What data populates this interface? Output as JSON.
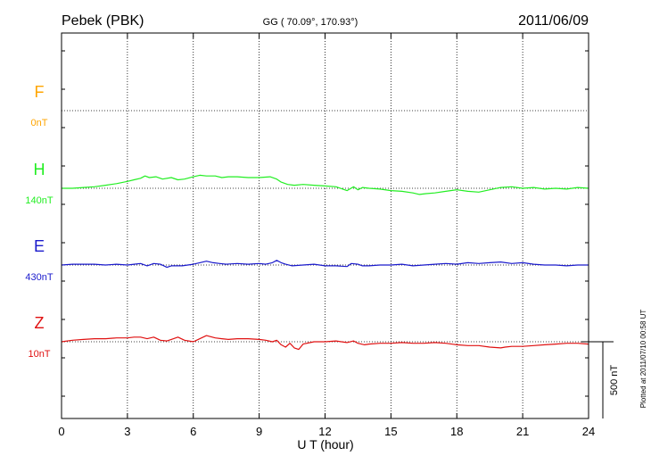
{
  "header": {
    "station": "Pebek (PBK)",
    "coords": "GG ( 70.09°, 170.93°)",
    "date": "2011/06/09"
  },
  "footer": {
    "plotted": "Plotted at 2011/07/10 00:58 UT"
  },
  "chart_data": {
    "type": "line",
    "xlabel": "U T (hour)",
    "xlim": [
      0,
      24
    ],
    "xticks": [
      "0",
      "3",
      "6",
      "9",
      "12",
      "15",
      "18",
      "21",
      "24"
    ],
    "scale_label": "500 nT",
    "scale_nT": 500,
    "grid": true,
    "series": [
      {
        "name": "F",
        "offset_label": "0nT",
        "color": "#ffa500",
        "x": [],
        "values": []
      },
      {
        "name": "H",
        "offset_label": "140nT",
        "color": "#22ee22",
        "x": [
          0,
          0.5,
          1,
          1.5,
          2,
          2.5,
          3,
          3.3,
          3.6,
          3.8,
          4,
          4.3,
          4.6,
          5,
          5.3,
          5.6,
          6,
          6.3,
          6.6,
          7,
          7.3,
          7.6,
          8,
          8.5,
          9,
          9.5,
          9.8,
          10,
          10.3,
          10.6,
          11,
          11.5,
          12,
          12.5,
          13,
          13.3,
          13.5,
          13.7,
          14,
          14.5,
          15,
          15.5,
          16,
          16.3,
          16.6,
          17,
          17.5,
          18,
          18.5,
          19,
          19.5,
          20,
          20.5,
          21,
          21.5,
          22,
          22.5,
          23,
          23.5,
          24
        ],
        "values": [
          0,
          0,
          5,
          10,
          20,
          30,
          45,
          55,
          65,
          80,
          70,
          75,
          60,
          70,
          55,
          60,
          75,
          85,
          80,
          80,
          70,
          75,
          75,
          70,
          70,
          75,
          60,
          40,
          25,
          20,
          25,
          20,
          15,
          10,
          -15,
          10,
          -10,
          5,
          0,
          -5,
          -15,
          -20,
          -30,
          -40,
          -35,
          -30,
          -20,
          -10,
          -20,
          -25,
          -10,
          5,
          10,
          0,
          5,
          -5,
          0,
          -5,
          5,
          0
        ]
      },
      {
        "name": "E",
        "offset_label": "430nT",
        "color": "#1a1acc",
        "x": [
          0,
          0.5,
          1,
          1.5,
          2,
          2.5,
          3,
          3.3,
          3.6,
          3.9,
          4.2,
          4.5,
          4.8,
          5,
          5.5,
          6,
          6.3,
          6.6,
          6.9,
          7.2,
          7.5,
          8,
          8.5,
          9,
          9.3,
          9.6,
          9.8,
          10,
          10.2,
          10.5,
          11,
          11.5,
          12,
          12.5,
          13,
          13.2,
          13.5,
          13.7,
          14,
          14.5,
          15,
          15.5,
          16,
          16.5,
          17,
          17.5,
          18,
          18.5,
          19,
          19.5,
          20,
          20.5,
          21,
          21.5,
          22,
          22.5,
          23,
          23.5,
          24
        ],
        "values": [
          0,
          5,
          5,
          5,
          0,
          5,
          0,
          5,
          10,
          -5,
          10,
          5,
          -15,
          -5,
          -5,
          5,
          15,
          25,
          15,
          10,
          5,
          10,
          5,
          10,
          5,
          15,
          30,
          15,
          5,
          -5,
          0,
          5,
          -5,
          -5,
          -10,
          10,
          5,
          -5,
          -5,
          0,
          0,
          5,
          -5,
          0,
          5,
          10,
          5,
          15,
          10,
          15,
          20,
          10,
          15,
          5,
          0,
          0,
          -5,
          0,
          0
        ]
      },
      {
        "name": "Z",
        "offset_label": "10nT",
        "color": "#e01010",
        "x": [
          0,
          0.5,
          1,
          1.5,
          2,
          2.5,
          3,
          3.3,
          3.6,
          3.9,
          4.2,
          4.5,
          4.8,
          5,
          5.3,
          5.6,
          6,
          6.3,
          6.6,
          7,
          7.3,
          7.6,
          8,
          8.5,
          9,
          9.3,
          9.6,
          9.8,
          10,
          10.2,
          10.4,
          10.6,
          10.8,
          11,
          11.5,
          12,
          12.5,
          13,
          13.3,
          13.5,
          13.8,
          14,
          14.5,
          15,
          15.5,
          16,
          16.5,
          17,
          17.5,
          18,
          18.5,
          19,
          19.5,
          20,
          20.2,
          20.5,
          21,
          21.5,
          22,
          22.5,
          23,
          23.5,
          24
        ],
        "values": [
          0,
          10,
          15,
          20,
          20,
          25,
          25,
          30,
          30,
          20,
          30,
          10,
          5,
          15,
          30,
          10,
          0,
          20,
          40,
          25,
          20,
          15,
          20,
          20,
          15,
          10,
          0,
          10,
          -20,
          -35,
          -10,
          -40,
          -50,
          -15,
          0,
          0,
          5,
          -5,
          5,
          -10,
          -20,
          -15,
          -10,
          -10,
          -5,
          -10,
          -10,
          -5,
          -10,
          -20,
          -25,
          -25,
          -35,
          -40,
          -35,
          -30,
          -30,
          -25,
          -20,
          -15,
          -10,
          -10,
          -15
        ]
      }
    ]
  }
}
